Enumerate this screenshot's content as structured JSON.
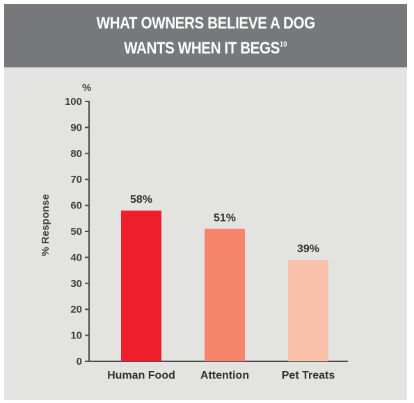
{
  "header": {
    "line1": "WHAT OWNERS BELIEVE A DOG",
    "line2": "WANTS WHEN IT BEGS",
    "footnote": "10"
  },
  "colors": {
    "header_bg": "#767879",
    "panel_bg": "#e3e4e2",
    "axis": "#4a4c4c",
    "bar_colors": [
      "#ee1f2b",
      "#f5846a",
      "#f9c0aa"
    ]
  },
  "chart_data": {
    "type": "bar",
    "title": "WHAT OWNERS BELIEVE A DOG WANTS WHEN IT BEGS",
    "categories": [
      "Human Food",
      "Attention",
      "Pet Treats"
    ],
    "values": [
      58,
      51,
      39
    ],
    "data_labels": [
      "58%",
      "51%",
      "39%"
    ],
    "ylabel": "% Response",
    "yunit": "%",
    "ylim": [
      0,
      100
    ],
    "yticks": [
      "0",
      "10",
      "20",
      "30",
      "40",
      "50",
      "60",
      "70",
      "80",
      "90",
      "100"
    ],
    "grid": false,
    "legend": "none"
  }
}
